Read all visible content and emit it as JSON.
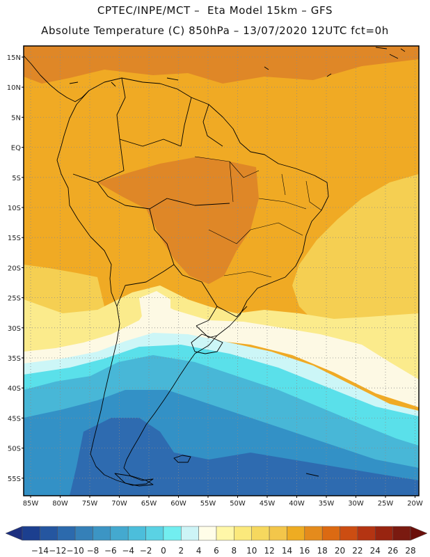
{
  "header": {
    "line1": "CPTEC/INPE/MCT –  Eta Model 15km – GFS",
    "line2": "Absolute Temperature (C) 850hPa – 13/07/2020 12UTC fct=0h"
  },
  "axes": {
    "lat_labels": [
      "15N",
      "10N",
      "5N",
      "EQ",
      "5S",
      "10S",
      "15S",
      "20S",
      "25S",
      "30S",
      "35S",
      "40S",
      "45S",
      "50S",
      "55S"
    ],
    "lon_labels": [
      "85W",
      "80W",
      "75W",
      "70W",
      "65W",
      "60W",
      "55W",
      "50W",
      "45W",
      "40W",
      "35W",
      "30W",
      "25W",
      "20W"
    ]
  },
  "colorbar": {
    "labels": [
      "-14",
      "-12",
      "-10",
      "-8",
      "-6",
      "-4",
      "-2",
      "0",
      "2",
      "4",
      "6",
      "8",
      "10",
      "12",
      "14",
      "16",
      "18",
      "20",
      "22",
      "24",
      "26",
      "28"
    ],
    "colors": [
      "#1c3f8f",
      "#2556a0",
      "#2c6aad",
      "#3580b8",
      "#3c95c4",
      "#44a9cf",
      "#4cbedb",
      "#5ad2e4",
      "#72eef0",
      "#cdf4f6",
      "#fffde8",
      "#fff7a8",
      "#fbe97c",
      "#f6d85e",
      "#f3c64a",
      "#eeac22",
      "#e58b1c",
      "#dc6a12",
      "#cc4d12",
      "#b43412",
      "#982410",
      "#7a1a10"
    ],
    "under_color": "#1c2f7f",
    "over_color": "#6a0f0a"
  },
  "colors": {
    "warm_dark": "#df8727",
    "warm": "#f0aa24",
    "yellow": "#f5cf52",
    "pale_yellow": "#fbeb8c",
    "cream": "#fdf9e4",
    "cyan_pale": "#ccf6f7",
    "cyan": "#5ae0ea",
    "blue_light": "#48b7d7",
    "blue_mid": "#3391c6",
    "blue_dark": "#2e6bb0"
  }
}
